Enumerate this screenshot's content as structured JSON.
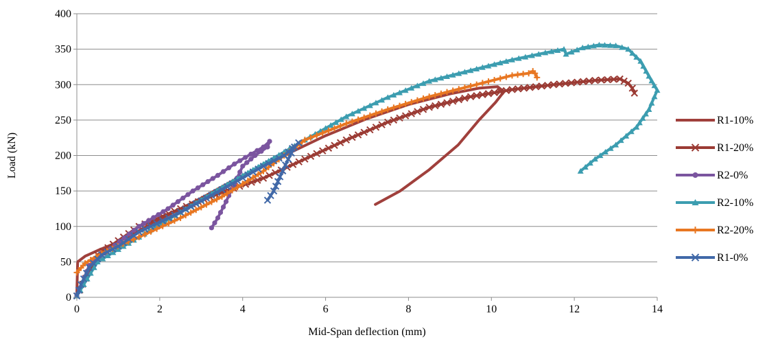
{
  "chart_data": {
    "type": "line",
    "xlabel": "Mid-Span deflection (mm)",
    "ylabel": "Load (kN)",
    "xlim": [
      0,
      14
    ],
    "ylim": [
      0,
      400
    ],
    "xticks": [
      0,
      2,
      4,
      6,
      8,
      10,
      12,
      14
    ],
    "yticks": [
      0,
      50,
      100,
      150,
      200,
      250,
      300,
      350,
      400
    ],
    "xtick_labels": [
      "0",
      "2",
      "4",
      "6",
      "8",
      "10",
      "12",
      "14"
    ],
    "ytick_labels": [
      "0",
      "50",
      "100",
      "150",
      "200",
      "250",
      "300",
      "350",
      "400"
    ],
    "grid": "horizontal",
    "legend_position": "right",
    "series": [
      {
        "name": "R1-10%",
        "color": "#A0403C",
        "marker": "none",
        "points": [
          [
            0.0,
            5
          ],
          [
            0.02,
            50
          ],
          [
            0.2,
            58
          ],
          [
            0.5,
            66
          ],
          [
            1.0,
            78
          ],
          [
            2.0,
            110
          ],
          [
            3.0,
            140
          ],
          [
            4.0,
            172
          ],
          [
            5.0,
            200
          ],
          [
            6.0,
            228
          ],
          [
            7.0,
            252
          ],
          [
            8.0,
            272
          ],
          [
            9.0,
            287
          ],
          [
            9.7,
            295
          ],
          [
            10.15,
            297
          ],
          [
            10.3,
            290
          ],
          [
            10.1,
            275
          ],
          [
            9.7,
            250
          ],
          [
            9.2,
            215
          ],
          [
            8.5,
            180
          ],
          [
            7.8,
            150
          ],
          [
            7.2,
            131
          ]
        ]
      },
      {
        "name": "R1-20%",
        "color": "#9B3B34",
        "marker": "x",
        "points": [
          [
            0.0,
            2
          ],
          [
            0.5,
            60
          ],
          [
            1.5,
            100
          ],
          [
            2.5,
            125
          ],
          [
            3.5,
            148
          ],
          [
            4.5,
            168
          ],
          [
            5.5,
            195
          ],
          [
            6.5,
            222
          ],
          [
            7.5,
            247
          ],
          [
            8.5,
            268
          ],
          [
            9.5,
            283
          ],
          [
            10.5,
            293
          ],
          [
            11.5,
            300
          ],
          [
            12.5,
            306
          ],
          [
            13.1,
            308
          ],
          [
            13.3,
            302
          ],
          [
            13.4,
            295
          ],
          [
            13.45,
            288
          ]
        ]
      },
      {
        "name": "R2-0%",
        "color": "#7B559F",
        "marker": "circle",
        "points": [
          [
            0.0,
            2
          ],
          [
            0.3,
            45
          ],
          [
            0.8,
            68
          ],
          [
            1.5,
            100
          ],
          [
            2.2,
            125
          ],
          [
            2.8,
            150
          ],
          [
            3.4,
            172
          ],
          [
            3.8,
            188
          ],
          [
            4.2,
            202
          ],
          [
            4.5,
            212
          ],
          [
            4.65,
            220
          ],
          [
            4.6,
            212
          ],
          [
            4.3,
            200
          ],
          [
            4.0,
            185
          ],
          [
            3.8,
            160
          ],
          [
            3.6,
            135
          ],
          [
            3.4,
            112
          ],
          [
            3.25,
            98
          ]
        ]
      },
      {
        "name": "R2-10%",
        "color": "#3C9DB0",
        "marker": "triangle",
        "points": [
          [
            0.0,
            2
          ],
          [
            0.5,
            50
          ],
          [
            1.5,
            85
          ],
          [
            2.5,
            120
          ],
          [
            3.5,
            155
          ],
          [
            4.5,
            188
          ],
          [
            5.5,
            222
          ],
          [
            6.5,
            255
          ],
          [
            7.5,
            282
          ],
          [
            8.5,
            305
          ],
          [
            9.5,
            320
          ],
          [
            10.5,
            335
          ],
          [
            11.3,
            345
          ],
          [
            11.75,
            350
          ],
          [
            11.8,
            343
          ],
          [
            12.2,
            352
          ],
          [
            12.6,
            356
          ],
          [
            13.0,
            355
          ],
          [
            13.3,
            350
          ],
          [
            13.6,
            333
          ],
          [
            13.8,
            312
          ],
          [
            14.0,
            292
          ],
          [
            13.8,
            265
          ],
          [
            13.5,
            240
          ],
          [
            13.0,
            215
          ],
          [
            12.5,
            195
          ],
          [
            12.15,
            178
          ]
        ]
      },
      {
        "name": "R2-20%",
        "color": "#E87722",
        "marker": "plus",
        "points": [
          [
            0.0,
            35
          ],
          [
            0.2,
            48
          ],
          [
            0.6,
            62
          ],
          [
            1.5,
            85
          ],
          [
            2.5,
            112
          ],
          [
            3.5,
            142
          ],
          [
            4.5,
            178
          ],
          [
            5.5,
            222
          ],
          [
            6.5,
            245
          ],
          [
            7.5,
            265
          ],
          [
            8.5,
            283
          ],
          [
            9.5,
            298
          ],
          [
            10.5,
            313
          ],
          [
            10.9,
            316
          ],
          [
            11.0,
            319
          ],
          [
            11.05,
            316
          ],
          [
            11.1,
            310
          ]
        ]
      },
      {
        "name": "R1-0%",
        "color": "#4169A8",
        "marker": "x",
        "points": [
          [
            0.0,
            2
          ],
          [
            0.1,
            18
          ],
          [
            0.3,
            42
          ],
          [
            0.6,
            60
          ],
          [
            1.0,
            72
          ],
          [
            1.5,
            92
          ],
          [
            2.5,
            120
          ],
          [
            3.5,
            152
          ],
          [
            4.5,
            185
          ],
          [
            5.0,
            200
          ],
          [
            5.2,
            210
          ],
          [
            5.35,
            218
          ],
          [
            5.25,
            212
          ],
          [
            5.1,
            195
          ],
          [
            4.9,
            170
          ],
          [
            4.75,
            150
          ],
          [
            4.6,
            137
          ]
        ]
      }
    ]
  }
}
